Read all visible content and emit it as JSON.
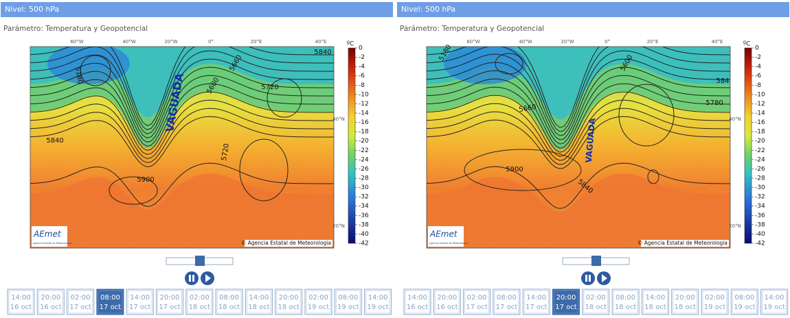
{
  "panels": [
    {
      "level": "Nivel: 500 hPa",
      "parameter": "Parámetro: Temperatura y Geopotencial",
      "longitudes": [
        "60°W",
        "40°W",
        "20°W",
        "0°",
        "20°E",
        "40°E"
      ],
      "latitudes": [
        "40°N",
        "20°N"
      ],
      "annotation": "VAGUADA",
      "contour_labels": [
        "5180",
        "5600",
        "5660",
        "5720",
        "5840",
        "5840",
        "5720",
        "5900"
      ],
      "copyright": "© Agencia Estatal de Meteorologia",
      "logo": "AEmet",
      "logo_caption": "Agencia Estatal de Meteorología",
      "colorbar": {
        "unit": "ºC",
        "ticks": [
          0,
          -2,
          -4,
          -6,
          -8,
          -10,
          -12,
          -14,
          -16,
          -18,
          -20,
          -22,
          -24,
          -26,
          -28,
          -30,
          -32,
          -34,
          -36,
          -38,
          -40,
          -42
        ]
      },
      "frames": [
        {
          "time": "14:00",
          "date": "16 oct"
        },
        {
          "time": "20:00",
          "date": "16 oct"
        },
        {
          "time": "02:00",
          "date": "17 oct"
        },
        {
          "time": "08:00",
          "date": "17 oct"
        },
        {
          "time": "14:00",
          "date": "17 oct"
        },
        {
          "time": "20:00",
          "date": "17 oct"
        },
        {
          "time": "02:00",
          "date": "18 oct"
        },
        {
          "time": "08:00",
          "date": "18 oct"
        },
        {
          "time": "14:00",
          "date": "18 oct"
        },
        {
          "time": "20:00",
          "date": "18 oct"
        },
        {
          "time": "02:00",
          "date": "19 oct"
        },
        {
          "time": "08:00",
          "date": "19 oct"
        },
        {
          "time": "14:00",
          "date": "19 oct"
        }
      ],
      "selected": 3
    },
    {
      "level": "Nivel: 500 hPa",
      "parameter": "Parámetro: Temperatura y Geopotencial",
      "longitudes": [
        "60°W",
        "40°W",
        "20°W",
        "0°",
        "20°E",
        "40°E"
      ],
      "latitudes": [
        "40°N",
        "20°N"
      ],
      "annotation": "VAGUADA",
      "contour_labels": [
        "5180",
        "5600",
        "5660",
        "5780",
        "584",
        "5900",
        "5840"
      ],
      "copyright": "© Agencia Estatal de Meteorologia",
      "logo": "AEmet",
      "logo_caption": "Agencia Estatal de Meteorología",
      "colorbar": {
        "unit": "ºC",
        "ticks": [
          0,
          -2,
          -4,
          -6,
          -8,
          -10,
          -12,
          -14,
          -16,
          -18,
          -20,
          -22,
          -24,
          -26,
          -28,
          -30,
          -32,
          -34,
          -36,
          -38,
          -40,
          -42
        ]
      },
      "frames": [
        {
          "time": "14:00",
          "date": "16 oct"
        },
        {
          "time": "20:00",
          "date": "16 oct"
        },
        {
          "time": "02:00",
          "date": "17 oct"
        },
        {
          "time": "08:00",
          "date": "17 oct"
        },
        {
          "time": "14:00",
          "date": "17 oct"
        },
        {
          "time": "20:00",
          "date": "17 oct"
        },
        {
          "time": "02:00",
          "date": "18 oct"
        },
        {
          "time": "08:00",
          "date": "18 oct"
        },
        {
          "time": "14:00",
          "date": "18 oct"
        },
        {
          "time": "20:00",
          "date": "18 oct"
        },
        {
          "time": "02:00",
          "date": "19 oct"
        },
        {
          "time": "08:00",
          "date": "19 oct"
        },
        {
          "time": "14:00",
          "date": "19 oct"
        }
      ],
      "selected": 5
    }
  ]
}
